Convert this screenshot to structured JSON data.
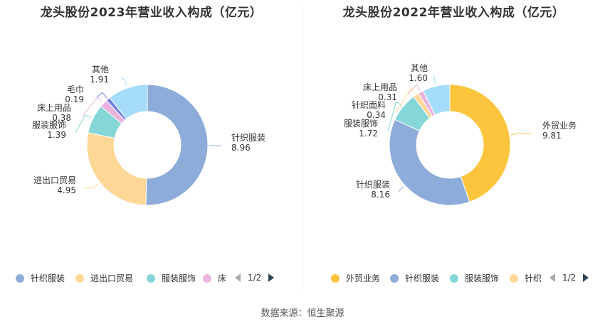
{
  "source": "数据来源：恒生聚源",
  "chart_data": [
    {
      "type": "pie",
      "title": "龙头股份2023年营业收入构成（亿元）",
      "series": [
        {
          "name": "针织服装",
          "value": 8.96,
          "color": "#8eacd9"
        },
        {
          "name": "进出口贸易",
          "value": 4.95,
          "color": "#fdd796"
        },
        {
          "name": "服装服饰",
          "value": 1.39,
          "color": "#85d6d6"
        },
        {
          "name": "床上用品",
          "value": 0.38,
          "color": "#e8b4dc"
        },
        {
          "name": "毛巾",
          "value": 0.19,
          "color": "#6f7fe6"
        },
        {
          "name": "其他",
          "value": 1.91,
          "color": "#a5dcf9"
        }
      ],
      "legend": {
        "items": [
          {
            "label": "针织服装",
            "color": "#8eacd9"
          },
          {
            "label": "进出口贸易",
            "color": "#fdd796"
          },
          {
            "label": "服装服饰",
            "color": "#85d6d6"
          },
          {
            "label": "床",
            "color": "#e8b4dc"
          }
        ],
        "page": "1/2",
        "placement": "bottom"
      }
    },
    {
      "type": "pie",
      "title": "龙头股份2022年营业收入构成（亿元）",
      "series": [
        {
          "name": "外贸业务",
          "value": 9.81,
          "color": "#fdc53d"
        },
        {
          "name": "针织服装",
          "value": 8.16,
          "color": "#8eacd9"
        },
        {
          "name": "服装服饰",
          "value": 1.72,
          "color": "#85d6d6"
        },
        {
          "name": "针织面料",
          "value": 0.34,
          "color": "#fdd796"
        },
        {
          "name": "床上用品",
          "value": 0.31,
          "color": "#e8b4dc"
        },
        {
          "name": "其他",
          "value": 1.6,
          "color": "#a5dcf9"
        }
      ],
      "legend": {
        "items": [
          {
            "label": "外贸业务",
            "color": "#fdc53d"
          },
          {
            "label": "针织服装",
            "color": "#8eacd9"
          },
          {
            "label": "服装服饰",
            "color": "#85d6d6"
          },
          {
            "label": "针织",
            "color": "#fdd796"
          }
        ],
        "page": "1/2",
        "placement": "bottom"
      }
    }
  ]
}
